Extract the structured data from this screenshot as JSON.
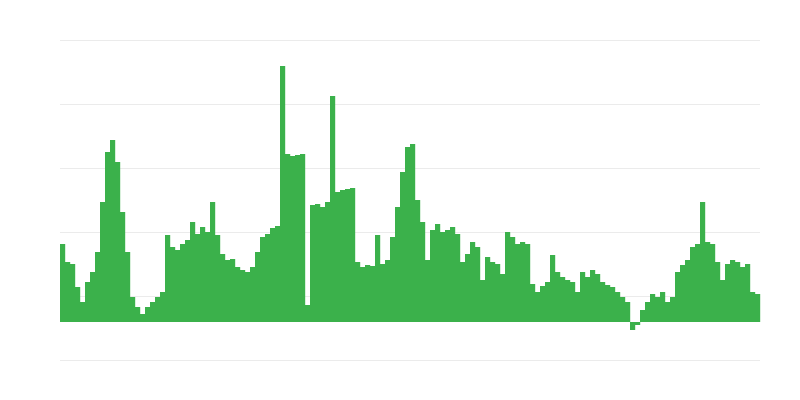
{
  "chart_data": {
    "type": "bar",
    "values": [
      78,
      60,
      58,
      35,
      20,
      40,
      50,
      70,
      120,
      170,
      182,
      160,
      110,
      70,
      25,
      15,
      8,
      15,
      20,
      25,
      30,
      87,
      75,
      72,
      78,
      82,
      100,
      88,
      95,
      90,
      120,
      87,
      68,
      62,
      63,
      55,
      52,
      50,
      55,
      70,
      85,
      88,
      94,
      96,
      256,
      168,
      166,
      167,
      168,
      17,
      117,
      118,
      115,
      120,
      226,
      130,
      132,
      133,
      134,
      60,
      55,
      57,
      56,
      87,
      58,
      62,
      85,
      115,
      150,
      175,
      178,
      122,
      100,
      62,
      92,
      98,
      90,
      92,
      95,
      88,
      60,
      68,
      80,
      75,
      42,
      65,
      60,
      58,
      48,
      90,
      85,
      78,
      80,
      78,
      38,
      30,
      36,
      40,
      67,
      50,
      45,
      42,
      40,
      30,
      50,
      45,
      52,
      48,
      40,
      37,
      35,
      30,
      25,
      20,
      -8,
      -3,
      12,
      20,
      28,
      25,
      30,
      20,
      25,
      50,
      57,
      62,
      75,
      78,
      120,
      80,
      78,
      60,
      42,
      58,
      62,
      60,
      55,
      58,
      30,
      28
    ],
    "color": "#3bb14b",
    "ylim": [
      -38,
      282
    ],
    "yticks": [
      -38,
      26,
      90,
      154,
      218,
      282
    ],
    "grid": true
  }
}
